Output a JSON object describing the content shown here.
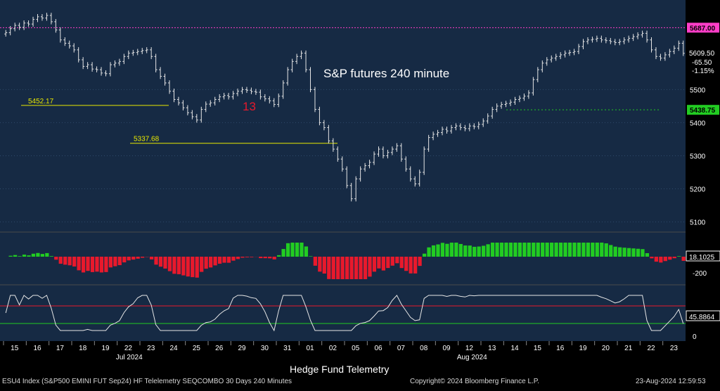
{
  "chart_data": {
    "type": "candlestick",
    "title": "S&P futures 240 minute",
    "instrument": "ESU4 Index (S&P500 EMINI FUT Sep24) HF Telelemetry SEQCOMBO 30 Days 240 Minutes",
    "x_day_labels": [
      "15",
      "16",
      "17",
      "18",
      "19",
      "22",
      "23",
      "24",
      "25",
      "26",
      "29",
      "30",
      "31",
      "01",
      "02",
      "05",
      "06",
      "07",
      "08",
      "09",
      "12",
      "13",
      "14",
      "15",
      "16",
      "19",
      "20",
      "21",
      "22",
      "23"
    ],
    "month_labels": [
      {
        "label": "Jul 2024",
        "day_index": 5
      },
      {
        "label": "Aug 2024",
        "day_index": 20
      }
    ],
    "price_axis": {
      "ticks": [
        5100,
        5200,
        5300,
        5400,
        5500
      ],
      "range": [
        5080,
        5760
      ]
    },
    "price_series": [
      {
        "d": "15",
        "v": [
          5672,
          5684,
          5694,
          5688,
          5701
        ]
      },
      {
        "d": "16",
        "v": [
          5698,
          5712,
          5720,
          5716,
          5724
        ]
      },
      {
        "d": "17",
        "v": [
          5705,
          5680,
          5650,
          5640,
          5632
        ]
      },
      {
        "d": "18",
        "v": [
          5620,
          5590,
          5570,
          5575,
          5562
        ]
      },
      {
        "d": "19",
        "v": [
          5560,
          5550,
          5548,
          5575,
          5580
        ]
      },
      {
        "d": "22",
        "v": [
          5585,
          5600,
          5610,
          5612,
          5615
        ]
      },
      {
        "d": "23",
        "v": [
          5618,
          5620,
          5600,
          5560,
          5540
        ]
      },
      {
        "d": "24",
        "v": [
          5520,
          5495,
          5470,
          5460,
          5445
        ]
      },
      {
        "d": "25",
        "v": [
          5430,
          5418,
          5408,
          5440,
          5456
        ]
      },
      {
        "d": "26",
        "v": [
          5460,
          5470,
          5478,
          5482,
          5478
        ]
      },
      {
        "d": "29",
        "v": [
          5488,
          5495,
          5500,
          5498,
          5494
        ]
      },
      {
        "d": "30",
        "v": [
          5492,
          5478,
          5472,
          5466,
          5455
        ]
      },
      {
        "d": "31",
        "v": [
          5480,
          5520,
          5560,
          5585,
          5600
        ]
      },
      {
        "d": "01",
        "v": [
          5610,
          5560,
          5500,
          5440,
          5400
        ]
      },
      {
        "d": "02",
        "v": [
          5385,
          5345,
          5320,
          5290,
          5260
        ]
      },
      {
        "d": "05",
        "v": [
          5210,
          5170,
          5230,
          5260,
          5270
        ]
      },
      {
        "d": "06",
        "v": [
          5280,
          5305,
          5320,
          5300,
          5310
        ]
      },
      {
        "d": "07",
        "v": [
          5320,
          5330,
          5290,
          5260,
          5230
        ]
      },
      {
        "d": "08",
        "v": [
          5215,
          5250,
          5320,
          5355,
          5365
        ]
      },
      {
        "d": "09",
        "v": [
          5370,
          5380,
          5375,
          5385,
          5390
        ]
      },
      {
        "d": "12",
        "v": [
          5385,
          5382,
          5390,
          5388,
          5395
        ]
      },
      {
        "d": "13",
        "v": [
          5405,
          5420,
          5440,
          5450,
          5455
        ]
      },
      {
        "d": "14",
        "v": [
          5458,
          5462,
          5470,
          5474,
          5480
        ]
      },
      {
        "d": "15",
        "v": [
          5490,
          5530,
          5560,
          5580,
          5590
        ]
      },
      {
        "d": "16",
        "v": [
          5595,
          5600,
          5605,
          5610,
          5612
        ]
      },
      {
        "d": "19",
        "v": [
          5615,
          5630,
          5645,
          5650,
          5652
        ]
      },
      {
        "d": "20",
        "v": [
          5655,
          5650,
          5648,
          5645,
          5642
        ]
      },
      {
        "d": "21",
        "v": [
          5645,
          5650,
          5655,
          5660,
          5665
        ]
      },
      {
        "d": "22",
        "v": [
          5670,
          5650,
          5620,
          5600,
          5595
        ]
      },
      {
        "d": "23",
        "v": [
          5605,
          5615,
          5625,
          5640,
          5609.5
        ]
      }
    ],
    "horizontal_levels": [
      {
        "value": 5687.0,
        "label": "5687.00",
        "color": "#ff3ec8"
      },
      {
        "value": 5452.17,
        "label": "5452.17",
        "color": "#e8e800"
      },
      {
        "value": 5337.68,
        "label": "5337.68",
        "color": "#e8e800"
      },
      {
        "value": 5438.75,
        "label": "5438.75",
        "color": "#22cc22"
      }
    ],
    "last_price": {
      "value": "5609.50",
      "change": "-65.50",
      "pct": "-1.15%"
    },
    "annotation": "13",
    "panel2": {
      "label": "18.1025",
      "ticks": [
        "0",
        "-200"
      ]
    },
    "panel3": {
      "label": "45.8864",
      "ticks": [
        "0"
      ]
    }
  },
  "footer": {
    "left": "ESU4 Index (S&P500 EMINI FUT  Sep24) HF Telelemetry SEQCOMBO 30 Days 240 Minutes",
    "center": "Copyright© 2024 Bloomberg Finance L.P.",
    "right": "23-Aug-2024 12:59:53",
    "watermark": "Hedge Fund Telemetry"
  },
  "colors": {
    "bg": "#162a44",
    "up": "#22cc22",
    "down": "#e8192c",
    "seq_green": "#22dd22",
    "seq_red": "#ee2222",
    "axis_text": "#ffffff",
    "grid": "#2f4a6a"
  }
}
